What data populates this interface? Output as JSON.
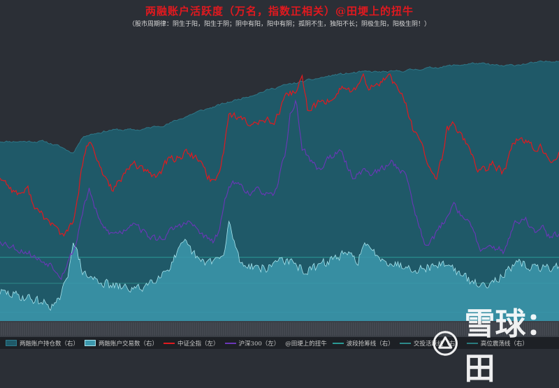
{
  "header": {
    "title": "两融账户活跃度（万名，指数正相关）@田埂上的扭牛",
    "subtitle": "（股市周期律：阴生于阳，阳生于阴；阴中有阳，阳中有阴；孤阴不生，独阳不长；阴极生阳，阳极生阴！）"
  },
  "watermark": {
    "text": "雪球：田"
  },
  "colors": {
    "holding_area": "#1f5968",
    "trading_area": "#3c98ad",
    "trading_line": "#a6e3ec",
    "csi_all": "#e01a1f",
    "hs300": "#6b37b8",
    "background_top": "#2b2f36",
    "gridline": "#2e8a8a"
  },
  "chart_data": {
    "type": "line",
    "title": "两融账户活跃度（万名，指数正相关）@田埂上的扭牛",
    "legend_position": "bottom",
    "grid": false,
    "series": [
      {
        "name": "两融账户持仓数（右）",
        "type": "area",
        "axis": "right",
        "anchors": [
          [
            0,
            0.62
          ],
          [
            0.08,
            0.62
          ],
          [
            0.11,
            0.6
          ],
          [
            0.13,
            0.58
          ],
          [
            0.15,
            0.64
          ],
          [
            0.2,
            0.66
          ],
          [
            0.25,
            0.66
          ],
          [
            0.3,
            0.68
          ],
          [
            0.35,
            0.72
          ],
          [
            0.4,
            0.75
          ],
          [
            0.45,
            0.78
          ],
          [
            0.5,
            0.81
          ],
          [
            0.55,
            0.83
          ],
          [
            0.6,
            0.85
          ],
          [
            0.65,
            0.86
          ],
          [
            0.7,
            0.86
          ],
          [
            0.75,
            0.87
          ],
          [
            0.8,
            0.88
          ],
          [
            0.85,
            0.89
          ],
          [
            0.9,
            0.88
          ],
          [
            0.95,
            0.89
          ],
          [
            1,
            0.9
          ]
        ]
      },
      {
        "name": "两融账户交易数（右）",
        "type": "area",
        "axis": "right",
        "anchors": [
          [
            0,
            0.1
          ],
          [
            0.05,
            0.08
          ],
          [
            0.1,
            0.05
          ],
          [
            0.12,
            0.14
          ],
          [
            0.13,
            0.28
          ],
          [
            0.15,
            0.16
          ],
          [
            0.2,
            0.12
          ],
          [
            0.25,
            0.11
          ],
          [
            0.3,
            0.18
          ],
          [
            0.33,
            0.27
          ],
          [
            0.36,
            0.2
          ],
          [
            0.4,
            0.22
          ],
          [
            0.41,
            0.34
          ],
          [
            0.43,
            0.2
          ],
          [
            0.48,
            0.18
          ],
          [
            0.5,
            0.22
          ],
          [
            0.52,
            0.2
          ],
          [
            0.55,
            0.17
          ],
          [
            0.6,
            0.22
          ],
          [
            0.62,
            0.23
          ],
          [
            0.64,
            0.21
          ],
          [
            0.65,
            0.26
          ],
          [
            0.7,
            0.2
          ],
          [
            0.75,
            0.18
          ],
          [
            0.8,
            0.2
          ],
          [
            0.83,
            0.15
          ],
          [
            0.86,
            0.12
          ],
          [
            0.9,
            0.16
          ],
          [
            0.93,
            0.2
          ],
          [
            0.96,
            0.18
          ],
          [
            1,
            0.19
          ]
        ]
      },
      {
        "name": "中证全指（左）",
        "type": "line",
        "axis": "left",
        "anchors": [
          [
            0,
            0.5
          ],
          [
            0.03,
            0.44
          ],
          [
            0.05,
            0.45
          ],
          [
            0.07,
            0.37
          ],
          [
            0.09,
            0.34
          ],
          [
            0.11,
            0.3
          ],
          [
            0.12,
            0.3
          ],
          [
            0.135,
            0.37
          ],
          [
            0.15,
            0.57
          ],
          [
            0.16,
            0.62
          ],
          [
            0.18,
            0.52
          ],
          [
            0.2,
            0.46
          ],
          [
            0.22,
            0.49
          ],
          [
            0.24,
            0.55
          ],
          [
            0.26,
            0.51
          ],
          [
            0.28,
            0.5
          ],
          [
            0.3,
            0.55
          ],
          [
            0.32,
            0.57
          ],
          [
            0.34,
            0.58
          ],
          [
            0.36,
            0.54
          ],
          [
            0.38,
            0.48
          ],
          [
            0.39,
            0.5
          ],
          [
            0.4,
            0.59
          ],
          [
            0.41,
            0.72
          ],
          [
            0.43,
            0.7
          ],
          [
            0.45,
            0.67
          ],
          [
            0.47,
            0.71
          ],
          [
            0.49,
            0.68
          ],
          [
            0.51,
            0.76
          ],
          [
            0.53,
            0.8
          ],
          [
            0.54,
            0.84
          ],
          [
            0.55,
            0.73
          ],
          [
            0.57,
            0.75
          ],
          [
            0.59,
            0.76
          ],
          [
            0.61,
            0.81
          ],
          [
            0.63,
            0.79
          ],
          [
            0.65,
            0.83
          ],
          [
            0.67,
            0.8
          ],
          [
            0.69,
            0.84
          ],
          [
            0.7,
            0.85
          ],
          [
            0.71,
            0.8
          ],
          [
            0.72,
            0.79
          ],
          [
            0.73,
            0.72
          ],
          [
            0.74,
            0.65
          ],
          [
            0.76,
            0.58
          ],
          [
            0.77,
            0.52
          ],
          [
            0.78,
            0.49
          ],
          [
            0.79,
            0.55
          ],
          [
            0.8,
            0.66
          ],
          [
            0.81,
            0.68
          ],
          [
            0.83,
            0.63
          ],
          [
            0.85,
            0.55
          ],
          [
            0.86,
            0.51
          ],
          [
            0.87,
            0.52
          ],
          [
            0.88,
            0.55
          ],
          [
            0.9,
            0.51
          ],
          [
            0.92,
            0.62
          ],
          [
            0.94,
            0.63
          ],
          [
            0.96,
            0.57
          ],
          [
            0.97,
            0.6
          ],
          [
            0.98,
            0.56
          ],
          [
            1,
            0.58
          ]
        ]
      },
      {
        "name": "沪深300（左）",
        "type": "line",
        "axis": "left",
        "anchors": [
          [
            0,
            0.28
          ],
          [
            0.03,
            0.25
          ],
          [
            0.05,
            0.24
          ],
          [
            0.07,
            0.21
          ],
          [
            0.09,
            0.2
          ],
          [
            0.11,
            0.16
          ],
          [
            0.12,
            0.2
          ],
          [
            0.135,
            0.26
          ],
          [
            0.15,
            0.4
          ],
          [
            0.16,
            0.45
          ],
          [
            0.18,
            0.33
          ],
          [
            0.2,
            0.3
          ],
          [
            0.22,
            0.31
          ],
          [
            0.24,
            0.35
          ],
          [
            0.26,
            0.3
          ],
          [
            0.28,
            0.28
          ],
          [
            0.3,
            0.3
          ],
          [
            0.32,
            0.33
          ],
          [
            0.34,
            0.34
          ],
          [
            0.36,
            0.3
          ],
          [
            0.38,
            0.27
          ],
          [
            0.39,
            0.3
          ],
          [
            0.4,
            0.38
          ],
          [
            0.41,
            0.48
          ],
          [
            0.43,
            0.47
          ],
          [
            0.45,
            0.44
          ],
          [
            0.47,
            0.45
          ],
          [
            0.49,
            0.42
          ],
          [
            0.51,
            0.58
          ],
          [
            0.52,
            0.72
          ],
          [
            0.53,
            0.76
          ],
          [
            0.54,
            0.6
          ],
          [
            0.55,
            0.57
          ],
          [
            0.57,
            0.52
          ],
          [
            0.59,
            0.57
          ],
          [
            0.61,
            0.58
          ],
          [
            0.63,
            0.5
          ],
          [
            0.65,
            0.52
          ],
          [
            0.67,
            0.51
          ],
          [
            0.69,
            0.53
          ],
          [
            0.7,
            0.55
          ],
          [
            0.72,
            0.52
          ],
          [
            0.73,
            0.48
          ],
          [
            0.74,
            0.4
          ],
          [
            0.75,
            0.32
          ],
          [
            0.76,
            0.27
          ],
          [
            0.78,
            0.3
          ],
          [
            0.8,
            0.36
          ],
          [
            0.81,
            0.41
          ],
          [
            0.83,
            0.36
          ],
          [
            0.85,
            0.3
          ],
          [
            0.86,
            0.23
          ],
          [
            0.88,
            0.26
          ],
          [
            0.9,
            0.24
          ],
          [
            0.92,
            0.33
          ],
          [
            0.94,
            0.35
          ],
          [
            0.96,
            0.3
          ],
          [
            0.97,
            0.32
          ],
          [
            0.98,
            0.29
          ],
          [
            1,
            0.3
          ]
        ]
      },
      {
        "name": "@田埂上的扭牛",
        "type": "none"
      },
      {
        "name": "波段抢筹线（右）",
        "type": "hline",
        "axis": "right",
        "value": 0.22,
        "color": "#2b9a95"
      },
      {
        "name": "交投活跃线（右）",
        "type": "hline",
        "axis": "right",
        "value": 0.13,
        "color": "#2e8a8a"
      },
      {
        "name": "高位震荡线（右）",
        "type": "hline",
        "axis": "right",
        "value": 0.03,
        "color": "#2a7c7f"
      }
    ],
    "xlabel": "",
    "ylabel": "",
    "ylim_left": [
      0,
      1
    ],
    "ylim_right": [
      0,
      1
    ]
  }
}
